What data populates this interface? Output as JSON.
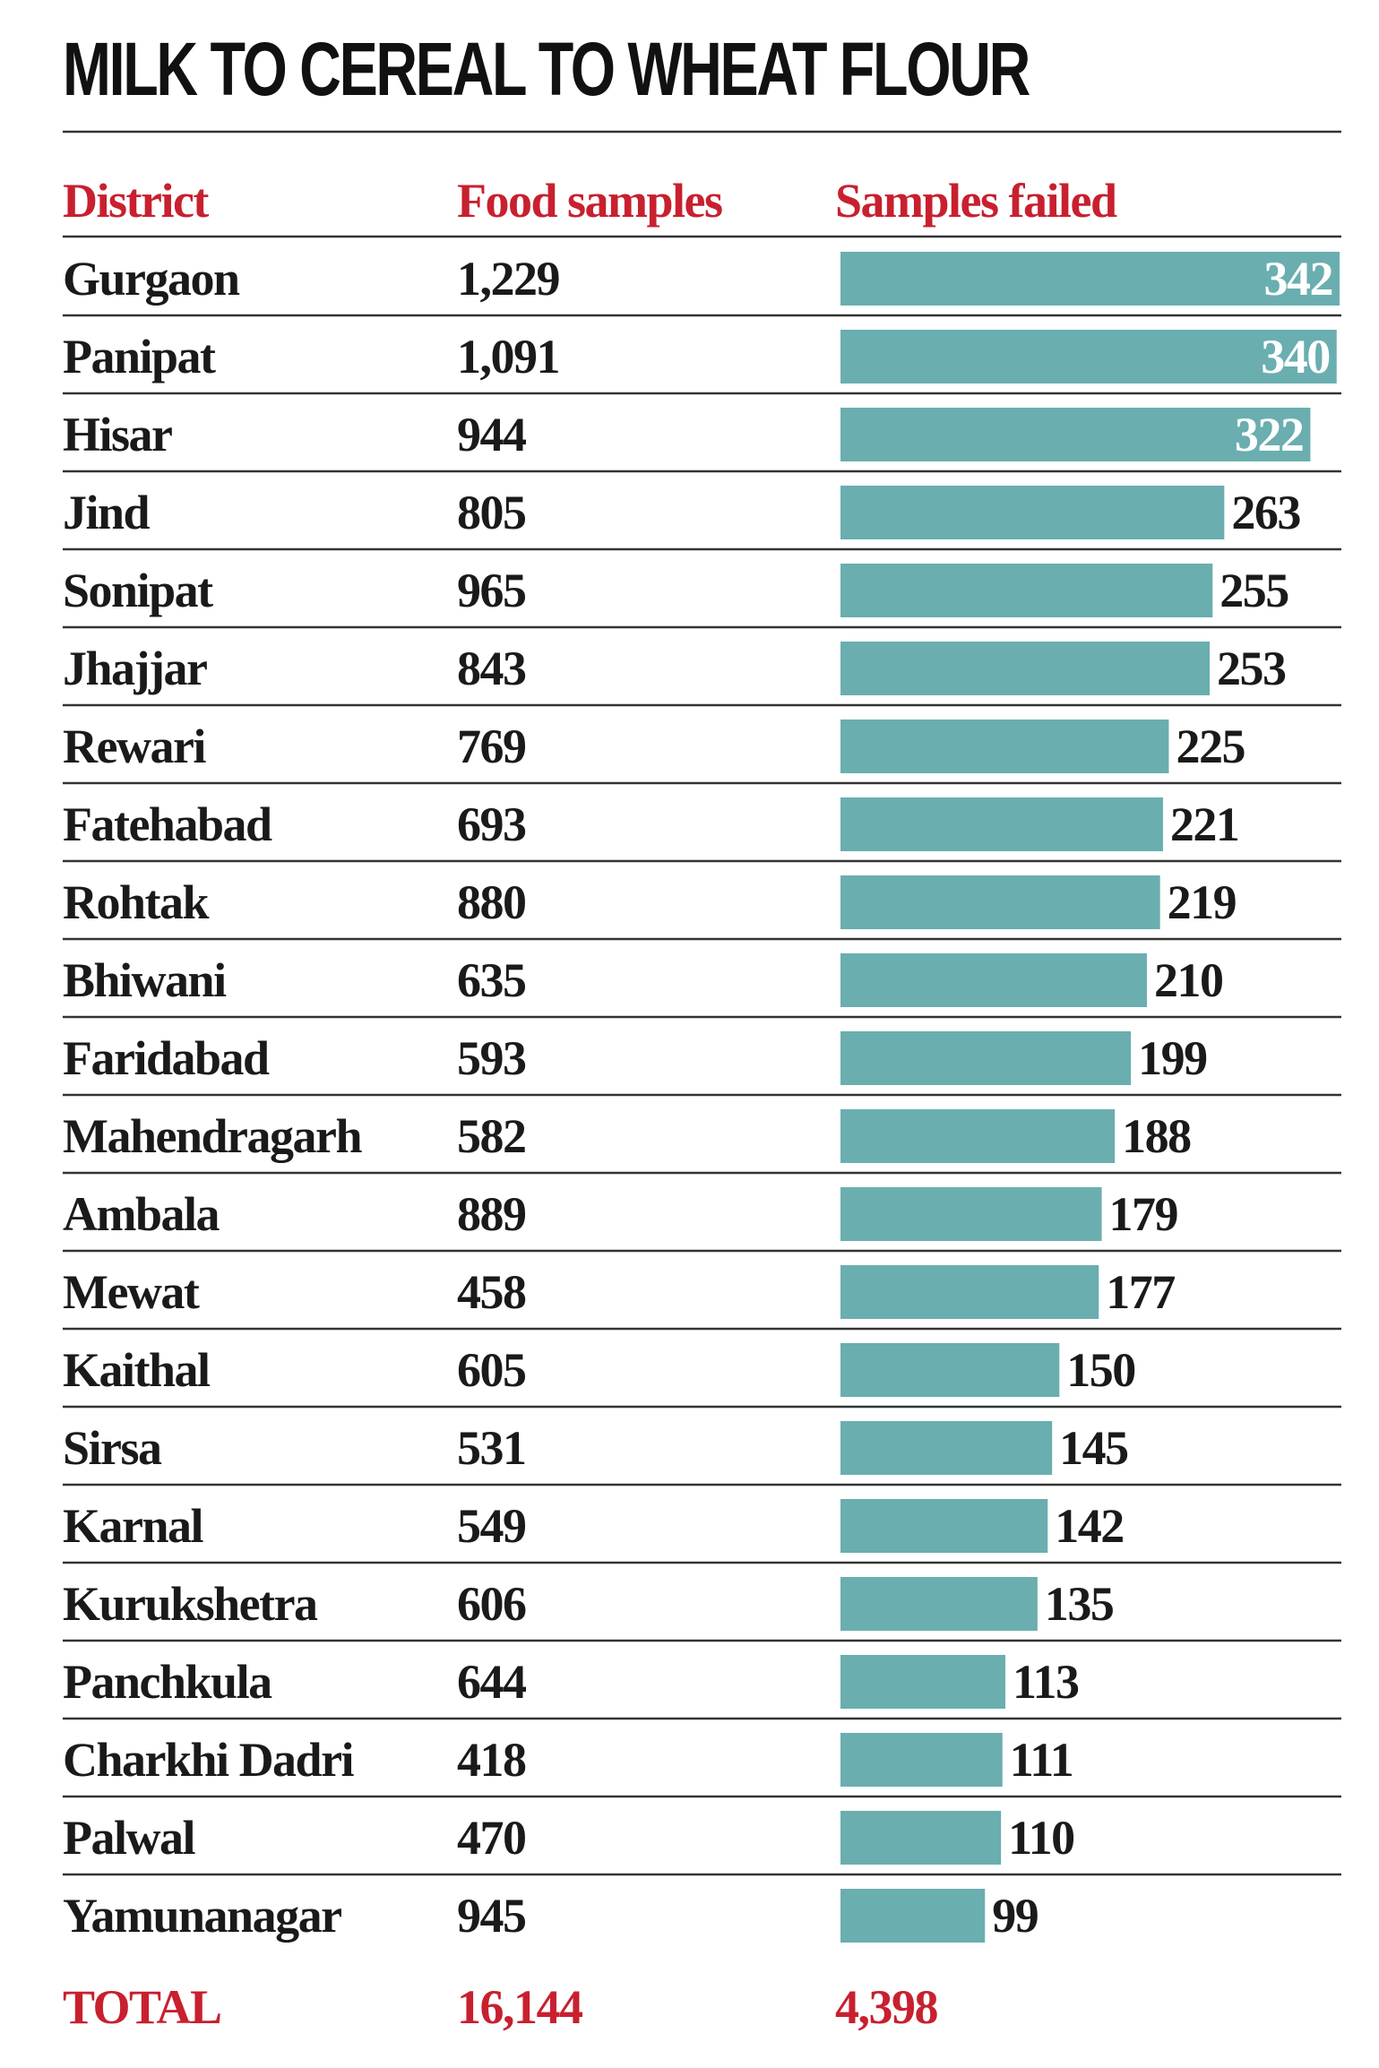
{
  "chart_data": {
    "type": "bar",
    "title": "MILK TO CEREAL TO WHEAT FLOUR",
    "first_column": "District",
    "categories": [
      "Gurgaon",
      "Panipat",
      "Hisar",
      "Jind",
      "Sonipat",
      "Jhajjar",
      "Rewari",
      "Fatehabad",
      "Rohtak",
      "Bhiwani",
      "Faridabad",
      "Mahendragarh",
      "Ambala",
      "Mewat",
      "Kaithal",
      "Sirsa",
      "Karnal",
      "Kurukshetra",
      "Panchkula",
      "Charkhi Dadri",
      "Palwal",
      "Yamunanagar"
    ],
    "series": [
      {
        "name": "Food samples",
        "values": [
          1229,
          1091,
          944,
          805,
          965,
          843,
          769,
          693,
          880,
          635,
          593,
          582,
          889,
          458,
          605,
          531,
          549,
          606,
          644,
          418,
          470,
          945
        ],
        "value_labels": [
          "1,229",
          "1,091",
          "944",
          "805",
          "965",
          "843",
          "769",
          "693",
          "880",
          "635",
          "593",
          "582",
          "889",
          "458",
          "605",
          "531",
          "549",
          "606",
          "644",
          "418",
          "470",
          "945"
        ]
      },
      {
        "name": "Samples failed",
        "color": "#6aaeb0",
        "values": [
          342,
          340,
          322,
          263,
          255,
          253,
          225,
          221,
          219,
          210,
          199,
          188,
          179,
          177,
          150,
          145,
          142,
          135,
          113,
          111,
          110,
          99
        ]
      }
    ],
    "total": {
      "label": "TOTAL",
      "values": [
        16144,
        4398
      ],
      "value_labels": [
        "16,144",
        "4,398"
      ]
    }
  }
}
